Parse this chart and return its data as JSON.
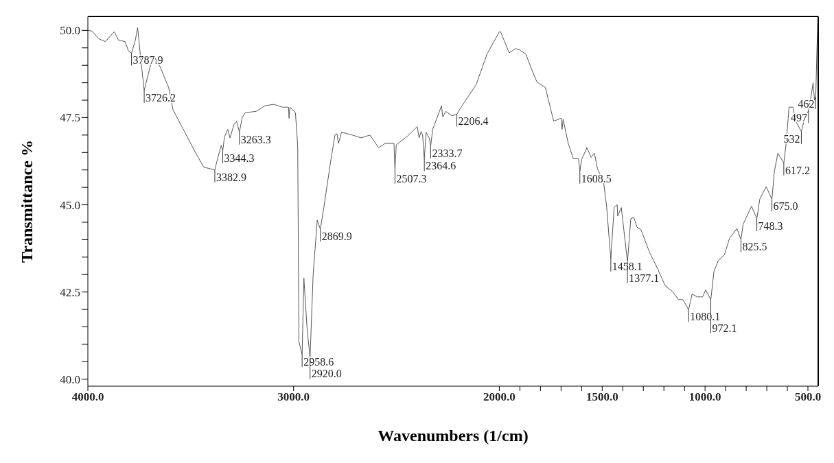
{
  "chart_data": {
    "type": "line",
    "xlabel": "Wavenumbers (1/cm)",
    "ylabel": "Transmittance %",
    "xlim": [
      4000,
      450
    ],
    "ylim": [
      39.8,
      50.4
    ],
    "xticks": [
      {
        "value": 4000,
        "label": "4000.0"
      },
      {
        "value": 3000,
        "label": "3000.0"
      },
      {
        "value": 2000,
        "label": "2000.0"
      },
      {
        "value": 1900,
        "label": null
      },
      {
        "value": 1800,
        "label": null
      },
      {
        "value": 1700,
        "label": null
      },
      {
        "value": 1600,
        "label": null
      },
      {
        "value": 1500,
        "label": "1500.0"
      },
      {
        "value": 1400,
        "label": null
      },
      {
        "value": 1300,
        "label": null
      },
      {
        "value": 1200,
        "label": null
      },
      {
        "value": 1100,
        "label": null
      },
      {
        "value": 1000,
        "label": "1000.0"
      },
      {
        "value": 900,
        "label": null
      },
      {
        "value": 800,
        "label": null
      },
      {
        "value": 700,
        "label": null
      },
      {
        "value": 600,
        "label": null
      },
      {
        "value": 500,
        "label": "500.0"
      }
    ],
    "yticks": [
      {
        "value": 40,
        "label": "40.0"
      },
      {
        "value": 40.5,
        "label": null
      },
      {
        "value": 41,
        "label": null
      },
      {
        "value": 41.5,
        "label": null
      },
      {
        "value": 42,
        "label": null
      },
      {
        "value": 42.5,
        "label": "42.5"
      },
      {
        "value": 43,
        "label": null
      },
      {
        "value": 43.5,
        "label": null
      },
      {
        "value": 44,
        "label": null
      },
      {
        "value": 44.5,
        "label": null
      },
      {
        "value": 45,
        "label": "45.0"
      },
      {
        "value": 45.5,
        "label": null
      },
      {
        "value": 46,
        "label": null
      },
      {
        "value": 46.5,
        "label": null
      },
      {
        "value": 47,
        "label": null
      },
      {
        "value": 47.5,
        "label": "47.5"
      },
      {
        "value": 48,
        "label": null
      },
      {
        "value": 48.5,
        "label": null
      },
      {
        "value": 49,
        "label": null
      },
      {
        "value": 49.5,
        "label": null
      },
      {
        "value": 50,
        "label": "50.0"
      }
    ],
    "marker": "none",
    "series": [
      {
        "color": "#555555",
        "x": [
          4000,
          3979,
          3947,
          3915,
          3872,
          3851,
          3819,
          3802,
          3787.9,
          3770,
          3758,
          3745,
          3726.2,
          3700,
          3681,
          3649,
          3607,
          3586,
          3543,
          3479,
          3437,
          3382.9,
          3373,
          3352,
          3344.3,
          3336,
          3320,
          3309,
          3290,
          3277,
          3263.3,
          3250,
          3235,
          3182,
          3139,
          3097,
          3054,
          3025,
          3022,
          3018,
          2991,
          2980,
          2974,
          2958.6,
          2950,
          2935,
          2920.0,
          2905,
          2885,
          2869.9,
          2853,
          2821,
          2799,
          2789,
          2782,
          2767,
          2714,
          2672,
          2629,
          2587,
          2555,
          2512,
          2507.3,
          2501,
          2448,
          2399,
          2390,
          2380,
          2373,
          2364.6,
          2356,
          2340,
          2333.7,
          2324,
          2281,
          2275,
          2260,
          2230,
          2206.4,
          2177,
          2113,
          2060,
          2000,
          1994,
          1952,
          1921,
          1901,
          1871,
          1840,
          1817,
          1776,
          1756,
          1736,
          1700,
          1695,
          1690,
          1665,
          1640,
          1615,
          1608.5,
          1600,
          1574,
          1554,
          1538,
          1523,
          1493,
          1478,
          1458.1,
          1442,
          1427,
          1425,
          1407,
          1377.1,
          1361,
          1346,
          1331,
          1311,
          1270,
          1230,
          1194,
          1159,
          1129,
          1108,
          1080.1,
          1063,
          1038,
          1012,
          997,
          972.1,
          957,
          936,
          906,
          881,
          845,
          825.5,
          815,
          774,
          748.3,
          734,
          703,
          675.0,
          663,
          646,
          617.2,
          605,
          592,
          572,
          560,
          532,
          515,
          497,
          485,
          475,
          468,
          462,
          456,
          452
        ],
        "values": [
          50.0,
          49.98,
          49.76,
          49.68,
          49.96,
          49.72,
          49.68,
          49.4,
          49.35,
          49.7,
          50.08,
          49.3,
          48.28,
          48.9,
          49.28,
          48.96,
          48.36,
          47.72,
          47.24,
          46.52,
          46.08,
          46.0,
          46.24,
          46.7,
          46.55,
          46.95,
          47.16,
          46.92,
          47.3,
          47.4,
          47.08,
          47.5,
          47.64,
          47.68,
          47.84,
          47.88,
          47.8,
          47.8,
          47.48,
          47.8,
          47.64,
          46.68,
          41.08,
          40.7,
          42.9,
          41.5,
          40.6,
          43.0,
          44.56,
          44.3,
          44.92,
          46.2,
          47.0,
          47.04,
          46.76,
          47.08,
          47.0,
          46.92,
          47.0,
          46.64,
          46.76,
          46.76,
          45.96,
          46.72,
          46.96,
          47.24,
          46.92,
          47.1,
          47.0,
          46.32,
          47.08,
          46.9,
          46.68,
          47.16,
          47.84,
          47.52,
          47.68,
          47.55,
          47.6,
          47.88,
          48.44,
          49.32,
          49.96,
          49.96,
          49.36,
          49.48,
          49.44,
          49.32,
          48.84,
          48.52,
          48.36,
          47.88,
          47.4,
          47.48,
          47.16,
          47.45,
          46.76,
          46.32,
          46.32,
          45.96,
          46.3,
          46.64,
          46.36,
          46.48,
          46.04,
          45.64,
          44.92,
          43.44,
          44.92,
          45.0,
          44.68,
          44.92,
          43.36,
          44.6,
          44.64,
          44.36,
          44.28,
          43.64,
          43.16,
          42.68,
          42.52,
          42.28,
          42.28,
          42.0,
          42.44,
          42.36,
          42.36,
          42.56,
          42.28,
          43.08,
          43.4,
          43.56,
          44.04,
          44.32,
          44.0,
          44.44,
          44.96,
          44.6,
          45.16,
          45.52,
          45.16,
          45.96,
          46.48,
          46.2,
          46.8,
          47.8,
          47.8,
          47.4,
          47.1,
          47.5,
          47.7,
          48.1,
          48.5,
          48.0,
          48.1,
          49.5,
          50.3
        ]
      }
    ],
    "annotations": [
      {
        "text": "3787.9",
        "x": 3787.9,
        "y": 49.35
      },
      {
        "text": "3726.2",
        "x": 3726.2,
        "y": 48.28
      },
      {
        "text": "3263.3",
        "x": 3263.3,
        "y": 47.08
      },
      {
        "text": "3344.3",
        "x": 3344.3,
        "y": 46.55
      },
      {
        "text": "3382.9",
        "x": 3382.9,
        "y": 46.0
      },
      {
        "text": "2869.9",
        "x": 2869.9,
        "y": 44.3
      },
      {
        "text": "2958.6",
        "x": 2958.6,
        "y": 40.7
      },
      {
        "text": "2920.0",
        "x": 2920.0,
        "y": 40.6
      },
      {
        "text": "2507.3",
        "x": 2507.3,
        "y": 45.96
      },
      {
        "text": "2364.6",
        "x": 2364.6,
        "y": 46.32
      },
      {
        "text": "2333.7",
        "x": 2333.7,
        "y": 46.68
      },
      {
        "text": "2206.4",
        "x": 2206.4,
        "y": 47.6
      },
      {
        "text": "1608.5",
        "x": 1608.5,
        "y": 45.96
      },
      {
        "text": "1458.1",
        "x": 1458.1,
        "y": 43.44
      },
      {
        "text": "1377.1",
        "x": 1377.1,
        "y": 43.36
      },
      {
        "text": "1080.1",
        "x": 1080.1,
        "y": 42.0
      },
      {
        "text": "972.1",
        "x": 972.1,
        "y": 42.28
      },
      {
        "text": "825.5",
        "x": 825.5,
        "y": 44.0
      },
      {
        "text": "748.3",
        "x": 748.3,
        "y": 44.6
      },
      {
        "text": "675.0",
        "x": 675.0,
        "y": 45.16
      },
      {
        "text": "617.2",
        "x": 617.2,
        "y": 46.2
      },
      {
        "text": "462",
        "x": 462,
        "y": 48.1
      },
      {
        "text": "497",
        "x": 497,
        "y": 47.7
      },
      {
        "text": "532",
        "x": 532,
        "y": 47.1
      }
    ]
  }
}
